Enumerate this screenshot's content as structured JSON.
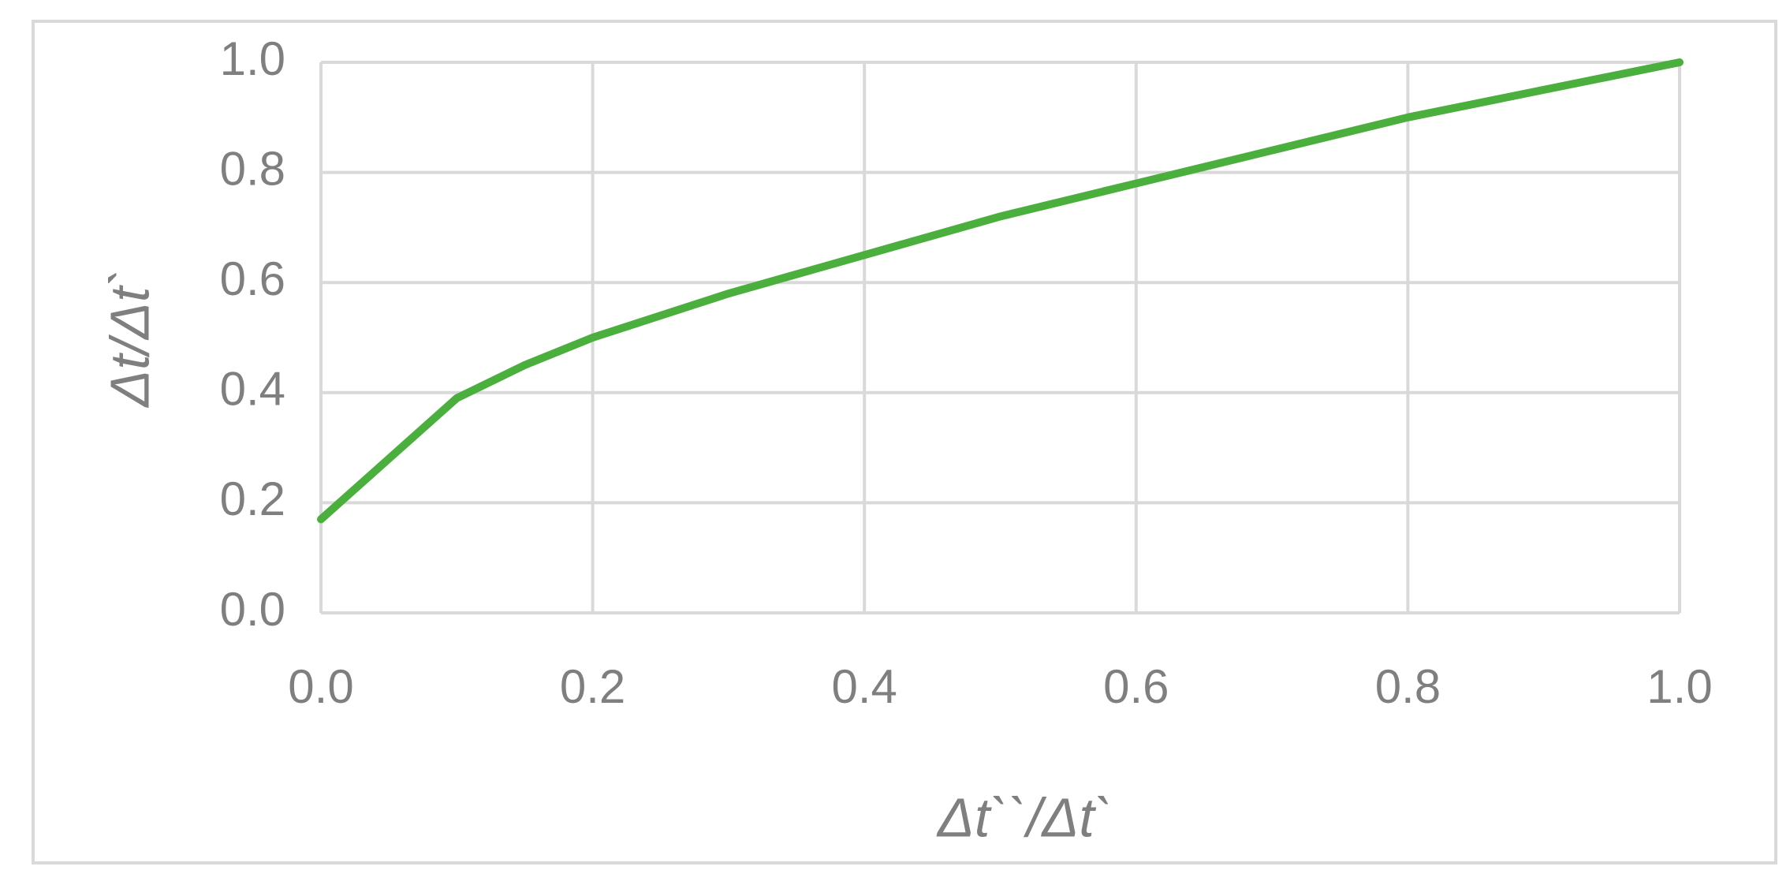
{
  "chart_data": {
    "type": "line",
    "xlabel": "Δt``/Δt`",
    "ylabel": "Δt/Δt`",
    "x": [
      0,
      0.05,
      0.1,
      0.15,
      0.2,
      0.3,
      0.4,
      0.5,
      0.6,
      0.7,
      0.8,
      0.9,
      1.0
    ],
    "series": [
      {
        "name": "Δt/Δt`",
        "color": "#4aaf3c",
        "values": [
          0.17,
          0.28,
          0.39,
          0.45,
          0.5,
          0.58,
          0.65,
          0.72,
          0.78,
          0.84,
          0.9,
          0.95,
          1.0
        ]
      }
    ],
    "xlim": [
      0,
      1
    ],
    "ylim": [
      0,
      1
    ],
    "xticks": [
      {
        "value": 0,
        "label": "0.0"
      },
      0.2,
      0.4,
      0.6,
      0.8,
      {
        "value": 1,
        "label": "1.0"
      }
    ],
    "yticks": [
      {
        "value": 0,
        "label": "0.0"
      },
      0.2,
      0.4,
      0.6,
      0.8,
      {
        "value": 1,
        "label": "1.0"
      }
    ],
    "grid": true
  }
}
